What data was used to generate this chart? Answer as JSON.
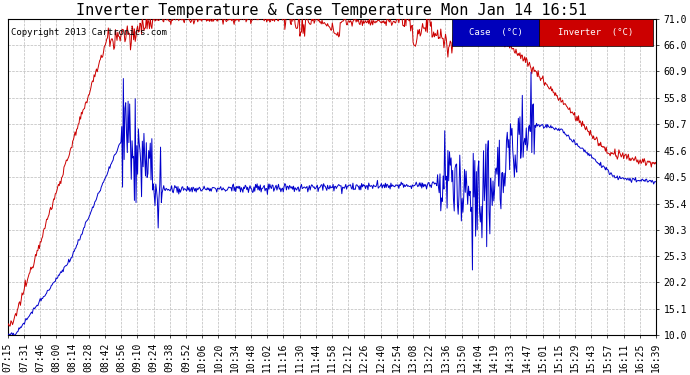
{
  "title": "Inverter Temperature & Case Temperature Mon Jan 14 16:51",
  "copyright": "Copyright 2013 Cartronics.com",
  "bg_color": "#ffffff",
  "plot_bg_color": "#ffffff",
  "grid_color": "#bbbbbb",
  "ylim": [
    10.0,
    71.0
  ],
  "yticks": [
    10.0,
    15.1,
    20.2,
    25.3,
    30.3,
    35.4,
    40.5,
    45.6,
    50.7,
    55.8,
    60.9,
    66.0,
    71.0
  ],
  "xtick_labels": [
    "07:15",
    "07:31",
    "07:46",
    "08:00",
    "08:14",
    "08:28",
    "08:42",
    "08:56",
    "09:10",
    "09:24",
    "09:38",
    "09:52",
    "10:06",
    "10:20",
    "10:34",
    "10:48",
    "11:02",
    "11:16",
    "11:30",
    "11:44",
    "11:58",
    "12:12",
    "12:26",
    "12:40",
    "12:54",
    "13:08",
    "13:22",
    "13:36",
    "13:50",
    "14:04",
    "14:19",
    "14:33",
    "14:47",
    "15:01",
    "15:15",
    "15:29",
    "15:43",
    "15:57",
    "16:11",
    "16:25",
    "16:39"
  ],
  "legend_case_label": "Case  (°C)",
  "legend_inverter_label": "Inverter  (°C)",
  "legend_case_bg": "#0000bb",
  "legend_inverter_bg": "#cc0000",
  "line_red_color": "#cc0000",
  "line_blue_color": "#0000cc",
  "title_fontsize": 11,
  "tick_fontsize": 7,
  "copyright_fontsize": 6.5,
  "figwidth": 6.9,
  "figheight": 3.75,
  "dpi": 100
}
